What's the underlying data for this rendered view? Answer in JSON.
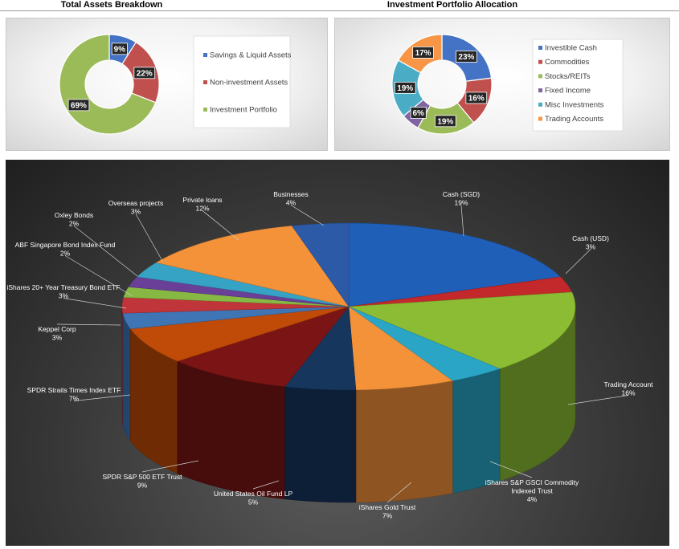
{
  "charts": [
    {
      "type": "pie",
      "variant": "donut",
      "title": "Total Assets Breakdown",
      "legend_position": "right",
      "categories": [
        "Savings & Liquid Assets",
        "Non-investment Assets",
        "Investment Portfolio"
      ],
      "values": [
        9,
        22,
        69
      ],
      "labels": [
        "9%",
        "22%",
        "69%"
      ],
      "colors": [
        "#4472c4",
        "#c0504d",
        "#9bbb59"
      ]
    },
    {
      "type": "pie",
      "variant": "donut",
      "title": "Investment Portfolio Allocation",
      "legend_position": "right",
      "categories": [
        "Investible Cash",
        "Commodities",
        "Stocks/REITs",
        "Fixed Income",
        "Misc Investments",
        "Trading Accounts"
      ],
      "values": [
        23,
        16,
        19,
        6,
        19,
        17
      ],
      "labels": [
        "23%",
        "16%",
        "19%",
        "6%",
        "19%",
        "17%"
      ],
      "colors": [
        "#4472c4",
        "#c0504d",
        "#9bbb59",
        "#8064a2",
        "#4bacc6",
        "#f79646"
      ]
    },
    {
      "type": "pie",
      "variant": "3d",
      "title": "",
      "categories": [
        "Cash (SGD)",
        "Cash (USD)",
        "Trading Account",
        "iShares S&P GSCI Commodity Indexed Trust",
        "iShares Gold Trust",
        "United States Oil Fund LP",
        "SPDR S&P 500 ETF Trust",
        "SPDR Straits Times Index ETF",
        "Keppel Corp",
        "iShares 20+ Year Treasury Bond ETF",
        "ABF Singapore Bond Index Fund",
        "Oxley Bonds",
        "Overseas projects",
        "Private loans",
        "Businesses"
      ],
      "values": [
        19,
        3,
        16,
        4,
        7,
        5,
        9,
        7,
        3,
        3,
        2,
        2,
        3,
        12,
        4
      ],
      "labels": [
        "19%",
        "3%",
        "16%",
        "4%",
        "7%",
        "5%",
        "9%",
        "7%",
        "3%",
        "3%",
        "2%",
        "2%",
        "3%",
        "12%",
        "4%"
      ],
      "colors": [
        "#1f5fb8",
        "#c3282a",
        "#8cbc33",
        "#2aa5c6",
        "#f4923a",
        "#17365d",
        "#7b1414",
        "#c04a07",
        "#3f75b5",
        "#c0353a",
        "#86b843",
        "#6a3f98",
        "#36a3c4",
        "#f4923a",
        "#2c5aa6"
      ]
    }
  ]
}
